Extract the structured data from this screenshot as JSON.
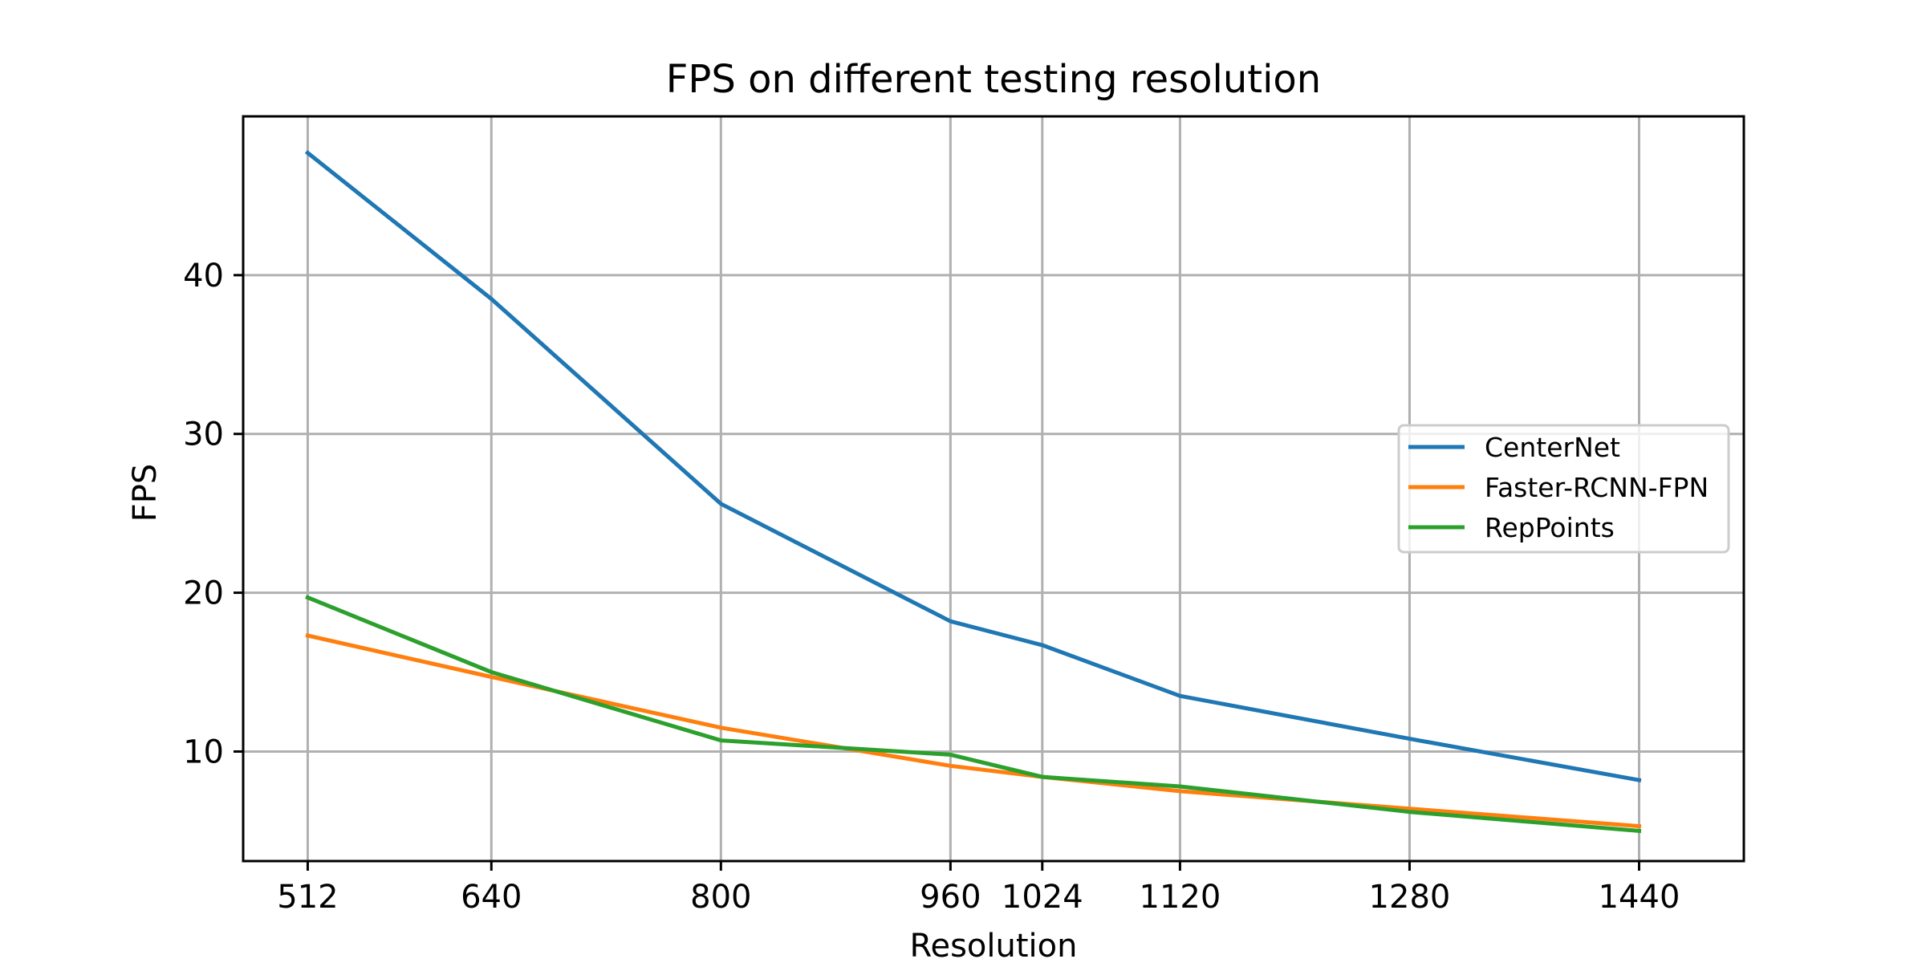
{
  "chart_data": {
    "type": "line",
    "title": "FPS on different testing resolution",
    "xlabel": "Resolution",
    "ylabel": "FPS",
    "x": [
      512,
      640,
      800,
      960,
      1024,
      1120,
      1280,
      1440
    ],
    "x_tick_labels": [
      "512",
      "640",
      "800",
      "960",
      "1024",
      "1120",
      "1280",
      "1440"
    ],
    "xlim": [
      467,
      1513
    ],
    "ylim": [
      3.1,
      50.0
    ],
    "y_ticks": [
      10,
      20,
      30,
      40
    ],
    "y_tick_labels": [
      "10",
      "20",
      "30",
      "40"
    ],
    "grid": true,
    "legend_position": "center-right",
    "series": [
      {
        "name": "CenterNet",
        "color": "#1f77b4",
        "values": [
          47.7,
          38.5,
          25.6,
          18.2,
          16.7,
          13.5,
          10.8,
          8.2
        ]
      },
      {
        "name": "Faster-RCNN-FPN",
        "color": "#ff7f0e",
        "values": [
          17.3,
          14.7,
          11.5,
          9.1,
          8.4,
          7.5,
          6.4,
          5.3
        ]
      },
      {
        "name": "RepPoints",
        "color": "#2ca02c",
        "values": [
          19.7,
          15.0,
          10.7,
          9.8,
          8.4,
          7.8,
          6.2,
          5.0
        ]
      }
    ]
  }
}
